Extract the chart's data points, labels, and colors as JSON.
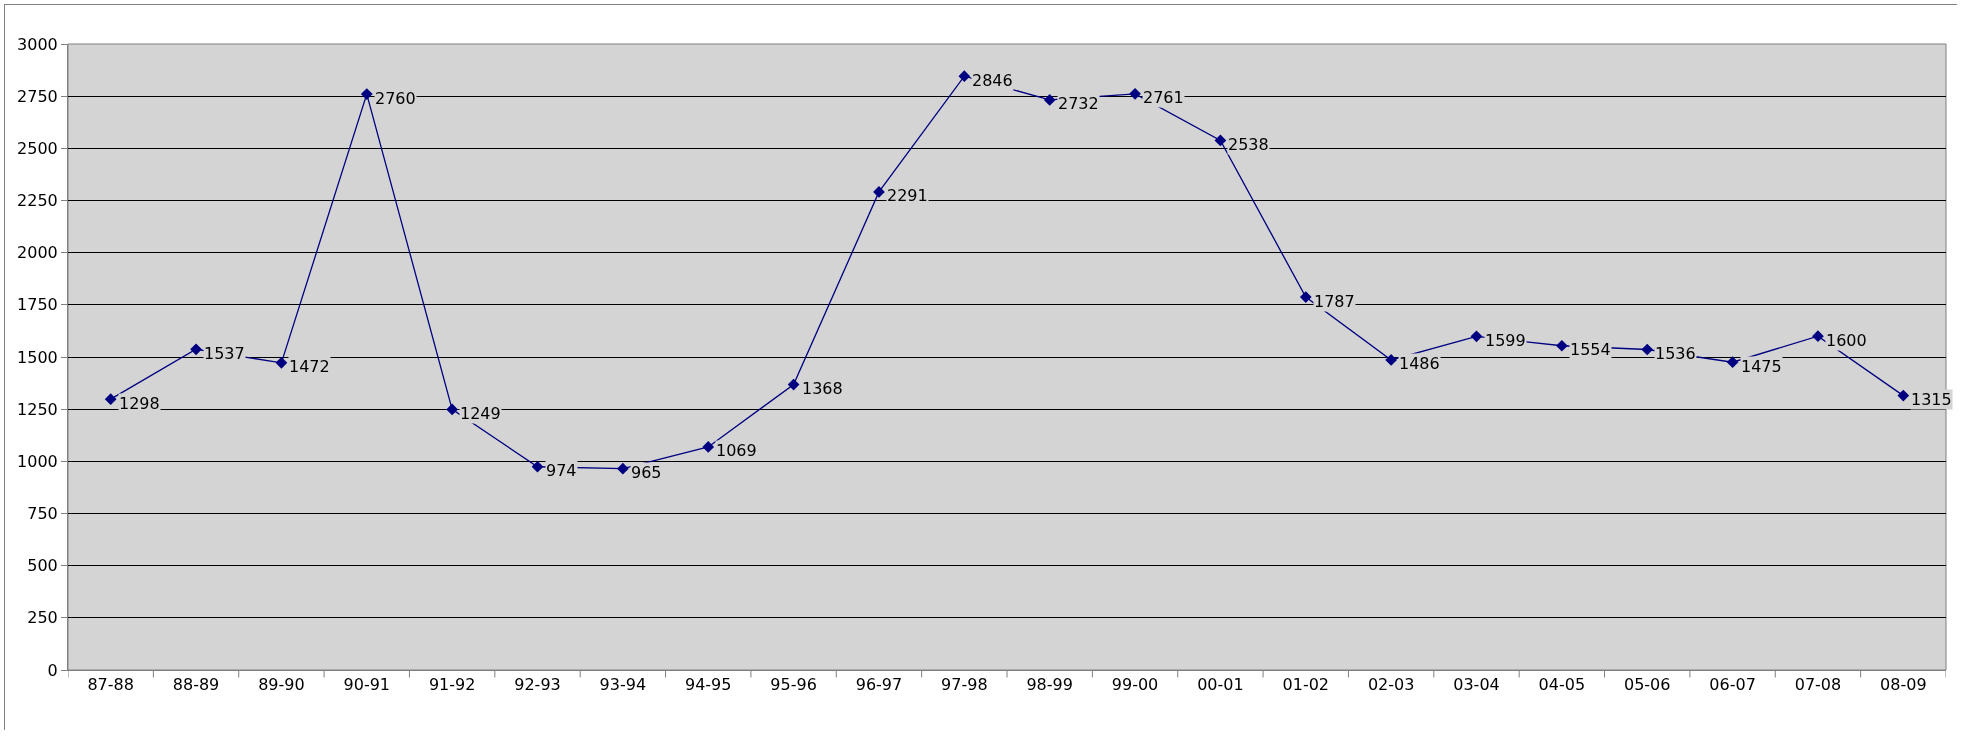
{
  "chart_data": {
    "type": "line",
    "categories": [
      "87-88",
      "88-89",
      "89-90",
      "90-91",
      "91-92",
      "92-93",
      "93-94",
      "94-95",
      "95-96",
      "96-97",
      "97-98",
      "98-99",
      "99-00",
      "00-01",
      "01-02",
      "02-03",
      "03-04",
      "04-05",
      "05-06",
      "06-07",
      "07-08",
      "08-09"
    ],
    "series": [
      {
        "color": "#000080",
        "values": [
          1298,
          1537,
          1472,
          2760,
          1249,
          974,
          965,
          1069,
          1368,
          2291,
          2846,
          2732,
          2761,
          2538,
          1787,
          1486,
          1599,
          1554,
          1536,
          1475,
          1600,
          1315
        ]
      }
    ],
    "ylim": [
      0,
      3000
    ],
    "yticks": [
      0,
      250,
      500,
      750,
      1000,
      1250,
      1500,
      1750,
      2000,
      2250,
      2500,
      2750,
      3000
    ],
    "grid": "y",
    "marker": "diamond",
    "line_style": "solid",
    "data_labels": true
  }
}
